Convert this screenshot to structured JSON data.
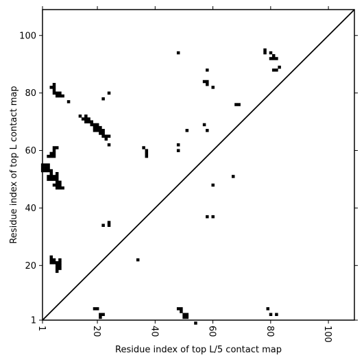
{
  "chart_data": {
    "type": "heatmap",
    "title": "",
    "xlabel": "Residue index of top L/5 contact map",
    "ylabel": "Residue index of top L contact map",
    "xlim": [
      1,
      109
    ],
    "ylim": [
      1,
      109
    ],
    "xticks": [
      1,
      20,
      40,
      60,
      80,
      100
    ],
    "yticks": [
      1,
      20,
      40,
      60,
      80,
      100
    ],
    "xtick_rotation": 90,
    "diagonal_line": true,
    "grid": false,
    "legend": "none",
    "mark_color": "#000000",
    "cells": [
      [
        1,
        53
      ],
      [
        2,
        53
      ],
      [
        3,
        53
      ],
      [
        1,
        54
      ],
      [
        2,
        54
      ],
      [
        3,
        54
      ],
      [
        1,
        55
      ],
      [
        2,
        55
      ],
      [
        3,
        55
      ],
      [
        3,
        58
      ],
      [
        4,
        58
      ],
      [
        5,
        58
      ],
      [
        4,
        59
      ],
      [
        5,
        59
      ],
      [
        5,
        60
      ],
      [
        5,
        61
      ],
      [
        6,
        61
      ],
      [
        3,
        50
      ],
      [
        4,
        50
      ],
      [
        5,
        50
      ],
      [
        6,
        50
      ],
      [
        3,
        51
      ],
      [
        4,
        51
      ],
      [
        5,
        51
      ],
      [
        6,
        51
      ],
      [
        6,
        52
      ],
      [
        4,
        52
      ],
      [
        4,
        53
      ],
      [
        5,
        48
      ],
      [
        6,
        48
      ],
      [
        7,
        48
      ],
      [
        6,
        49
      ],
      [
        7,
        49
      ],
      [
        6,
        47
      ],
      [
        7,
        47
      ],
      [
        8,
        47
      ],
      [
        4,
        82
      ],
      [
        5,
        82
      ],
      [
        5,
        83
      ],
      [
        5,
        81
      ],
      [
        5,
        80
      ],
      [
        6,
        80
      ],
      [
        7,
        80
      ],
      [
        6,
        79
      ],
      [
        7,
        79
      ],
      [
        8,
        79
      ],
      [
        10,
        77
      ],
      [
        14,
        72
      ],
      [
        15,
        71
      ],
      [
        16,
        71
      ],
      [
        16,
        72
      ],
      [
        17,
        71
      ],
      [
        16,
        70
      ],
      [
        17,
        70
      ],
      [
        18,
        70
      ],
      [
        18,
        69
      ],
      [
        19,
        69
      ],
      [
        20,
        69
      ],
      [
        19,
        68
      ],
      [
        20,
        68
      ],
      [
        21,
        68
      ],
      [
        19,
        67
      ],
      [
        20,
        67
      ],
      [
        21,
        67
      ],
      [
        22,
        67
      ],
      [
        21,
        66
      ],
      [
        22,
        66
      ],
      [
        22,
        65
      ],
      [
        23,
        65
      ],
      [
        24,
        65
      ],
      [
        23,
        64
      ],
      [
        24,
        62
      ],
      [
        22,
        78
      ],
      [
        24,
        80
      ],
      [
        4,
        21
      ],
      [
        5,
        21
      ],
      [
        6,
        21
      ],
      [
        7,
        21
      ],
      [
        4,
        22
      ],
      [
        5,
        22
      ],
      [
        7,
        22
      ],
      [
        4,
        23
      ],
      [
        6,
        20
      ],
      [
        7,
        20
      ],
      [
        6,
        19
      ],
      [
        7,
        19
      ],
      [
        6,
        18
      ],
      [
        19,
        5
      ],
      [
        20,
        5
      ],
      [
        21,
        3
      ],
      [
        22,
        3
      ],
      [
        21,
        2
      ],
      [
        22,
        34
      ],
      [
        24,
        34
      ],
      [
        24,
        35
      ],
      [
        34,
        22
      ],
      [
        36,
        61
      ],
      [
        37,
        60
      ],
      [
        37,
        59
      ],
      [
        37,
        58
      ],
      [
        48,
        94
      ],
      [
        48,
        62
      ],
      [
        48,
        60
      ],
      [
        51,
        67
      ],
      [
        57,
        84
      ],
      [
        58,
        84
      ],
      [
        58,
        83
      ],
      [
        58,
        88
      ],
      [
        60,
        82
      ],
      [
        57,
        69
      ],
      [
        58,
        67
      ],
      [
        60,
        48
      ],
      [
        67,
        51
      ],
      [
        58,
        37
      ],
      [
        60,
        37
      ],
      [
        68,
        76
      ],
      [
        69,
        76
      ],
      [
        78,
        95
      ],
      [
        78,
        94
      ],
      [
        80,
        94
      ],
      [
        81,
        93
      ],
      [
        80,
        92
      ],
      [
        81,
        92
      ],
      [
        82,
        92
      ],
      [
        81,
        88
      ],
      [
        82,
        88
      ],
      [
        83,
        89
      ],
      [
        48,
        5
      ],
      [
        49,
        5
      ],
      [
        49,
        4
      ],
      [
        50,
        3
      ],
      [
        51,
        3
      ],
      [
        50,
        2
      ],
      [
        51,
        2
      ],
      [
        54,
        0
      ],
      [
        79,
        5
      ],
      [
        80,
        3
      ],
      [
        82,
        3
      ]
    ]
  }
}
